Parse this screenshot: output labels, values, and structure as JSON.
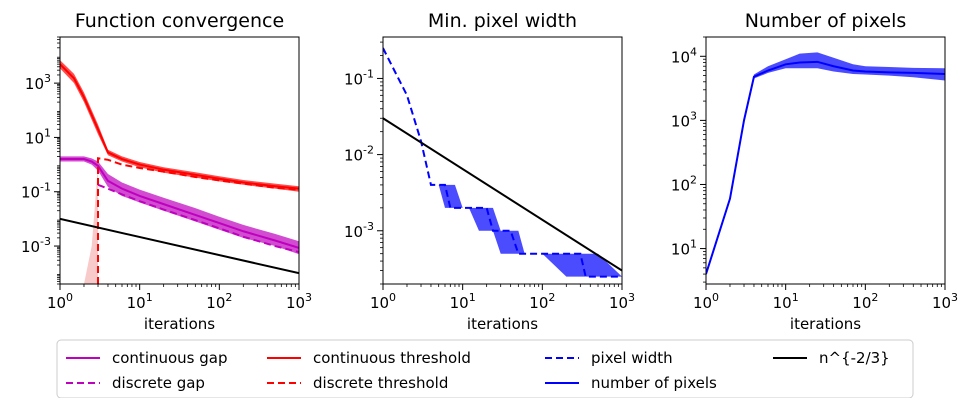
{
  "colors": {
    "gap": "#bf00bf",
    "threshold": "#ff0000",
    "pixel": "#0000ff",
    "ref": "#000000",
    "gap_band": "#e6a6e6",
    "threshold_band": "#f7b3b3",
    "pixel_band": "#c8c8f5"
  },
  "chart_data": [
    {
      "type": "line",
      "title": "Function convergence",
      "xlabel": "iterations",
      "ylabel": "",
      "xscale": "log",
      "yscale": "log",
      "xlim": [
        1,
        1000
      ],
      "ylim": [
        4e-05,
        50000
      ],
      "xticks": [
        "10^0",
        "10^1",
        "10^2",
        "10^3"
      ],
      "yticks": [
        "10^-3",
        "10^-1",
        "10^1",
        "10^3"
      ],
      "series": [
        {
          "name": "continuous gap",
          "style": "solid",
          "color_key": "gap",
          "x": [
            1,
            1.5,
            2,
            2.5,
            3,
            4,
            6,
            10,
            20,
            50,
            100,
            200,
            500,
            1000
          ],
          "y": [
            1.6,
            1.6,
            1.6,
            1.3,
            0.9,
            0.25,
            0.13,
            0.07,
            0.035,
            0.014,
            0.007,
            0.0035,
            0.0016,
            0.00085
          ],
          "band_low": [
            1.3,
            1.3,
            1.3,
            1.0,
            0.6,
            0.15,
            0.07,
            0.04,
            0.02,
            0.008,
            0.004,
            0.002,
            0.001,
            0.0005
          ],
          "band_high": [
            2.0,
            2.0,
            2.0,
            1.7,
            1.3,
            0.45,
            0.22,
            0.12,
            0.06,
            0.025,
            0.012,
            0.006,
            0.0028,
            0.0015
          ]
        },
        {
          "name": "discrete gap",
          "style": "dashed",
          "color_key": "gap",
          "x": [
            3,
            4,
            6,
            10,
            20,
            50,
            100,
            200,
            500,
            1000
          ],
          "y": [
            0.18,
            0.13,
            0.08,
            0.045,
            0.022,
            0.009,
            0.0045,
            0.0022,
            0.001,
            0.0006
          ]
        },
        {
          "name": "continuous threshold",
          "style": "solid",
          "color_key": "threshold",
          "x": [
            1,
            1.5,
            2,
            3,
            4,
            6,
            10,
            20,
            50,
            100,
            200,
            500,
            1000
          ],
          "y": [
            5000,
            1500,
            300,
            20,
            2.8,
            1.6,
            1.0,
            0.65,
            0.42,
            0.3,
            0.22,
            0.16,
            0.13
          ],
          "band_low": [
            3500,
            1000,
            200,
            13,
            2.2,
            1.3,
            0.8,
            0.5,
            0.33,
            0.24,
            0.18,
            0.13,
            0.1
          ],
          "band_high": [
            7000,
            2200,
            450,
            30,
            3.5,
            2.0,
            1.25,
            0.8,
            0.52,
            0.37,
            0.27,
            0.2,
            0.16
          ]
        },
        {
          "name": "discrete threshold",
          "style": "dashed",
          "color_key": "threshold",
          "x": [
            3,
            3,
            4,
            6,
            10,
            20,
            50,
            100,
            200,
            500,
            1000
          ],
          "y": [
            4e-05,
            1.7,
            1.5,
            1.0,
            0.75,
            0.55,
            0.35,
            0.26,
            0.2,
            0.14,
            0.12
          ]
        },
        {
          "name": "n^{-2/3}",
          "style": "solid",
          "color_key": "ref",
          "x": [
            1,
            1000
          ],
          "y": [
            0.01,
            0.0001
          ]
        }
      ],
      "extra_bands": [
        {
          "color_key": "threshold_band",
          "x": [
            2,
            2.5,
            3,
            3.01
          ],
          "low": [
            4e-05,
            4e-05,
            4e-05,
            0.1
          ],
          "high": [
            4e-05,
            0.001,
            0.9,
            1.5
          ]
        }
      ]
    },
    {
      "type": "line",
      "title": "Min. pixel width",
      "xlabel": "iterations",
      "ylabel": "",
      "xscale": "log",
      "yscale": "log",
      "xlim": [
        1,
        1000
      ],
      "ylim": [
        0.0002,
        0.35
      ],
      "xticks": [
        "10^0",
        "10^1",
        "10^2",
        "10^3"
      ],
      "yticks": [
        "10^-3",
        "10^-2",
        "10^-1"
      ],
      "series": [
        {
          "name": "pixel width",
          "style": "dashed",
          "color_key": "pixel",
          "x": [
            1,
            2,
            3,
            4,
            5,
            6,
            7,
            8,
            10,
            12,
            16,
            20,
            24,
            30,
            40,
            50,
            60,
            100,
            200,
            300,
            350,
            500,
            1000
          ],
          "y": [
            0.25,
            0.06,
            0.015,
            0.004,
            0.004,
            0.004,
            0.002,
            0.002,
            0.002,
            0.002,
            0.002,
            0.002,
            0.001,
            0.001,
            0.001,
            0.0005,
            0.0005,
            0.0005,
            0.0005,
            0.0005,
            0.00025,
            0.00025,
            0.00025
          ],
          "band_low": [
            0.25,
            0.06,
            0.015,
            0.004,
            0.004,
            0.002,
            0.002,
            0.002,
            0.002,
            0.002,
            0.001,
            0.001,
            0.001,
            0.0005,
            0.0005,
            0.0005,
            0.0005,
            0.0005,
            0.00025,
            0.00025,
            0.00025,
            0.00025,
            0.00025
          ],
          "band_high": [
            0.25,
            0.06,
            0.015,
            0.004,
            0.004,
            0.004,
            0.004,
            0.004,
            0.002,
            0.002,
            0.002,
            0.002,
            0.002,
            0.001,
            0.001,
            0.001,
            0.0005,
            0.0005,
            0.0005,
            0.0005,
            0.0005,
            0.0005,
            0.00025
          ]
        },
        {
          "name": "n^{-2/3}",
          "style": "solid",
          "color_key": "ref",
          "x": [
            1,
            1000
          ],
          "y": [
            0.03,
            0.0003
          ]
        }
      ]
    },
    {
      "type": "line",
      "title": "Number of pixels",
      "xlabel": "iterations",
      "ylabel": "",
      "xscale": "log",
      "yscale": "log",
      "xlim": [
        1,
        1000
      ],
      "ylim": [
        2.8,
        20000
      ],
      "xticks": [
        "10^0",
        "10^1",
        "10^2",
        "10^3"
      ],
      "yticks": [
        "10^1",
        "10^2",
        "10^3",
        "10^4"
      ],
      "series": [
        {
          "name": "number of pixels",
          "style": "solid",
          "color_key": "pixel",
          "x": [
            1,
            2,
            3,
            4,
            6,
            10,
            15,
            25,
            40,
            70,
            100,
            200,
            400,
            1000
          ],
          "y": [
            4,
            60,
            1000,
            4800,
            6000,
            7500,
            8000,
            8200,
            7000,
            6000,
            5800,
            5600,
            5500,
            5300
          ],
          "band_low": [
            4,
            60,
            1000,
            4500,
            5500,
            6500,
            6500,
            6500,
            5800,
            5300,
            5200,
            5000,
            4700,
            4200
          ],
          "band_high": [
            4,
            60,
            1000,
            5200,
            7000,
            9000,
            11000,
            11500,
            9500,
            7500,
            7000,
            6800,
            6600,
            6500
          ]
        }
      ]
    }
  ],
  "legend": {
    "placement": "bottom",
    "entries": [
      {
        "label": "continuous gap",
        "color_key": "gap",
        "style": "solid"
      },
      {
        "label": "discrete gap",
        "color_key": "gap",
        "style": "dashed"
      },
      {
        "label": "continuous threshold",
        "color_key": "threshold",
        "style": "solid"
      },
      {
        "label": "discrete threshold",
        "color_key": "threshold",
        "style": "dashed"
      },
      {
        "label": "pixel width",
        "color_key": "pixel",
        "style": "dashed"
      },
      {
        "label": "number of pixels",
        "color_key": "pixel",
        "style": "solid"
      },
      {
        "label": "n^{-2/3}",
        "color_key": "ref",
        "style": "solid"
      }
    ]
  }
}
